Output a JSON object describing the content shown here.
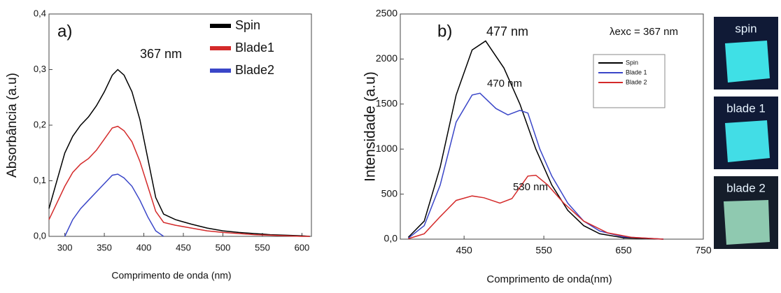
{
  "chart_data": [
    {
      "type": "line",
      "panel": "a)",
      "xlabel": "Comprimento de onda (nm)",
      "ylabel": "Absorbância (a.u)",
      "annotations": [
        "367 nm"
      ],
      "x": [
        280,
        290,
        300,
        310,
        320,
        330,
        340,
        350,
        360,
        367,
        375,
        385,
        395,
        405,
        415,
        425,
        440,
        460,
        480,
        500,
        520,
        540,
        560,
        580,
        600,
        610
      ],
      "xlim": [
        280,
        612
      ],
      "xticks": [
        300,
        350,
        400,
        450,
        500,
        550,
        600
      ],
      "ylim": [
        0,
        0.4
      ],
      "yticks": [
        {
          "value": 0,
          "label": "0,0"
        },
        {
          "value": 0.1,
          "label": "0,1"
        },
        {
          "value": 0.2,
          "label": "0,2"
        },
        {
          "value": 0.3,
          "label": "0,3"
        },
        {
          "value": 0.4,
          "label": "0,4"
        }
      ],
      "series": [
        {
          "name": "Spin",
          "color": "#000000",
          "values": [
            0.05,
            0.1,
            0.15,
            0.18,
            0.2,
            0.215,
            0.235,
            0.26,
            0.29,
            0.3,
            0.29,
            0.26,
            0.21,
            0.14,
            0.07,
            0.04,
            0.03,
            0.022,
            0.015,
            0.01,
            0.007,
            0.005,
            0.003,
            0.002,
            0.001,
            0
          ]
        },
        {
          "name": "Blade1",
          "color": "#d42a2a",
          "values": [
            0.03,
            0.06,
            0.09,
            0.115,
            0.13,
            0.14,
            0.155,
            0.175,
            0.195,
            0.198,
            0.19,
            0.17,
            0.135,
            0.09,
            0.045,
            0.025,
            0.02,
            0.015,
            0.01,
            0.007,
            0.005,
            0.003,
            0.002,
            0.001,
            0,
            0
          ]
        },
        {
          "name": "Blade2",
          "color": "#3a46c8",
          "values": [
            null,
            null,
            0,
            0.03,
            0.05,
            0.065,
            0.08,
            0.095,
            0.11,
            0.112,
            0.105,
            0.09,
            0.065,
            0.035,
            0.01,
            0,
            null,
            null,
            null,
            null,
            null,
            null,
            null,
            null,
            null,
            null
          ]
        }
      ]
    },
    {
      "type": "line",
      "panel": "b)",
      "xlabel": "Comprimento de onda(nm)",
      "ylabel": "Intensidade (a.u)",
      "annotations": [
        "477 nm",
        "470 nm",
        "530 nm",
        "λexc = 367 nm"
      ],
      "xlim": [
        370,
        750
      ],
      "xticks": [
        450,
        550,
        650,
        750
      ],
      "ylim": [
        0,
        2500
      ],
      "yticks": [
        {
          "value": 0,
          "label": "0,0"
        },
        500,
        1000,
        1500,
        2000,
        2500
      ],
      "series": [
        {
          "name": "Spin",
          "color": "#000000",
          "x": [
            380,
            400,
            420,
            440,
            460,
            477,
            500,
            520,
            540,
            560,
            580,
            600,
            620,
            650,
            700
          ],
          "values": [
            20,
            200,
            800,
            1600,
            2100,
            2200,
            1900,
            1500,
            1000,
            600,
            320,
            150,
            60,
            15,
            0
          ]
        },
        {
          "name": "Blade 1",
          "color": "#3a46c8",
          "x": [
            380,
            400,
            420,
            440,
            460,
            470,
            490,
            505,
            520,
            530,
            545,
            560,
            580,
            600,
            620,
            650,
            700
          ],
          "values": [
            10,
            150,
            600,
            1300,
            1600,
            1620,
            1450,
            1380,
            1430,
            1400,
            1000,
            700,
            400,
            200,
            90,
            25,
            0
          ]
        },
        {
          "name": "Blade 2",
          "color": "#d42a2a",
          "x": [
            380,
            400,
            420,
            440,
            460,
            475,
            495,
            510,
            530,
            540,
            555,
            575,
            600,
            630,
            660,
            700
          ],
          "values": [
            5,
            60,
            250,
            430,
            480,
            460,
            400,
            450,
            700,
            710,
            600,
            400,
            200,
            70,
            20,
            0
          ]
        }
      ]
    }
  ],
  "photo_labels": [
    "spin",
    "blade 1",
    "blade 2"
  ]
}
